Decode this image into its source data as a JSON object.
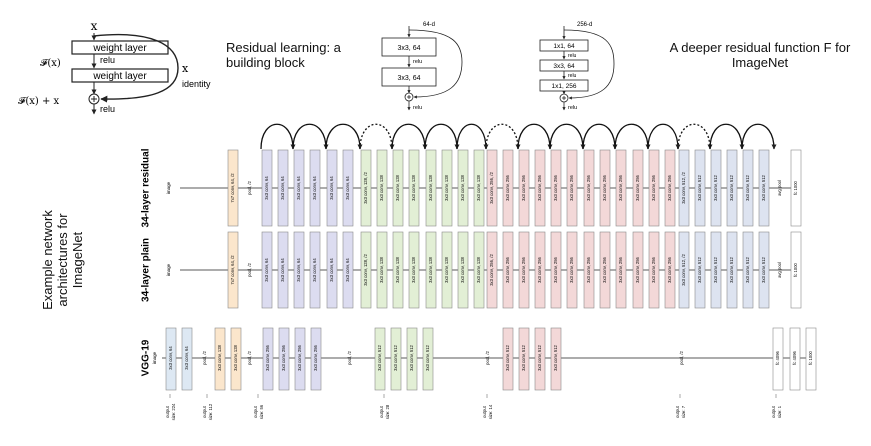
{
  "block_basic": {
    "input": "x",
    "layer1": "weight layer",
    "relu_mid": "relu",
    "layer2": "weight layer",
    "fx": "𝓕(x)",
    "shortcut_x": "x",
    "shortcut": "identity",
    "sum": "𝓕(x) + x",
    "relu_out": "relu"
  },
  "caption_residual": [
    "Residual learning: a",
    "building block"
  ],
  "block_64": {
    "input": "64-d",
    "layer1": "3x3, 64",
    "relu_mid": "relu",
    "layer2": "3x3, 64",
    "relu_out": "relu"
  },
  "block_256": {
    "input": "256-d",
    "layer1": "1x1, 64",
    "relu1": "relu",
    "layer2": "3x3, 64",
    "relu2": "relu",
    "layer3": "1x1, 256",
    "relu_out": "relu"
  },
  "caption_deeper": [
    "A deeper residual function F for",
    "ImageNet"
  ],
  "caption_example": [
    "Example network",
    "architectures for ImageNet"
  ],
  "rows": [
    {
      "label": "34-layer residual",
      "input": "image",
      "layers": [
        {
          "text": "7x7 conv, 64, /2",
          "color": "#fbe6cc"
        },
        {
          "text": "pool, /2",
          "color": "none"
        },
        {
          "text": "3x3 conv, 64",
          "color": "#dcdcf0"
        },
        {
          "text": "3x3 conv, 64",
          "color": "#dcdcf0"
        },
        {
          "text": "3x3 conv, 64",
          "color": "#dcdcf0"
        },
        {
          "text": "3x3 conv, 64",
          "color": "#dcdcf0"
        },
        {
          "text": "3x3 conv, 64",
          "color": "#dcdcf0"
        },
        {
          "text": "3x3 conv, 64",
          "color": "#dcdcf0"
        },
        {
          "text": "3x3 conv, 128, /2",
          "color": "#e2efd5"
        },
        {
          "text": "3x3 conv, 128",
          "color": "#e2efd5"
        },
        {
          "text": "3x3 conv, 128",
          "color": "#e2efd5"
        },
        {
          "text": "3x3 conv, 128",
          "color": "#e2efd5"
        },
        {
          "text": "3x3 conv, 128",
          "color": "#e2efd5"
        },
        {
          "text": "3x3 conv, 128",
          "color": "#e2efd5"
        },
        {
          "text": "3x3 conv, 128",
          "color": "#e2efd5"
        },
        {
          "text": "3x3 conv, 128",
          "color": "#e2efd5"
        },
        {
          "text": "3x3 conv, 256, /2",
          "color": "#f3d8d8"
        },
        {
          "text": "3x3 conv, 256",
          "color": "#f3d8d8"
        },
        {
          "text": "3x3 conv, 256",
          "color": "#f3d8d8"
        },
        {
          "text": "3x3 conv, 256",
          "color": "#f3d8d8"
        },
        {
          "text": "3x3 conv, 256",
          "color": "#f3d8d8"
        },
        {
          "text": "3x3 conv, 256",
          "color": "#f3d8d8"
        },
        {
          "text": "3x3 conv, 256",
          "color": "#f3d8d8"
        },
        {
          "text": "3x3 conv, 256",
          "color": "#f3d8d8"
        },
        {
          "text": "3x3 conv, 256",
          "color": "#f3d8d8"
        },
        {
          "text": "3x3 conv, 256",
          "color": "#f3d8d8"
        },
        {
          "text": "3x3 conv, 256",
          "color": "#f3d8d8"
        },
        {
          "text": "3x3 conv, 256",
          "color": "#f3d8d8"
        },
        {
          "text": "3x3 conv, 512, /2",
          "color": "#dde3f0"
        },
        {
          "text": "3x3 conv, 512",
          "color": "#dde3f0"
        },
        {
          "text": "3x3 conv, 512",
          "color": "#dde3f0"
        },
        {
          "text": "3x3 conv, 512",
          "color": "#dde3f0"
        },
        {
          "text": "3x3 conv, 512",
          "color": "#dde3f0"
        },
        {
          "text": "3x3 conv, 512",
          "color": "#dde3f0"
        },
        {
          "text": "avg pool",
          "color": "none"
        },
        {
          "text": "fc 1000",
          "color": "#ffffff"
        }
      ]
    },
    {
      "label": "34-layer plain",
      "input": "image",
      "layers": [
        {
          "text": "7x7 conv, 64, /2",
          "color": "#fbe6cc"
        },
        {
          "text": "pool, /2",
          "color": "none"
        },
        {
          "text": "3x3 conv, 64",
          "color": "#dcdcf0"
        },
        {
          "text": "3x3 conv, 64",
          "color": "#dcdcf0"
        },
        {
          "text": "3x3 conv, 64",
          "color": "#dcdcf0"
        },
        {
          "text": "3x3 conv, 64",
          "color": "#dcdcf0"
        },
        {
          "text": "3x3 conv, 64",
          "color": "#dcdcf0"
        },
        {
          "text": "3x3 conv, 64",
          "color": "#dcdcf0"
        },
        {
          "text": "3x3 conv, 128, /2",
          "color": "#e2efd5"
        },
        {
          "text": "3x3 conv, 128",
          "color": "#e2efd5"
        },
        {
          "text": "3x3 conv, 128",
          "color": "#e2efd5"
        },
        {
          "text": "3x3 conv, 128",
          "color": "#e2efd5"
        },
        {
          "text": "3x3 conv, 128",
          "color": "#e2efd5"
        },
        {
          "text": "3x3 conv, 128",
          "color": "#e2efd5"
        },
        {
          "text": "3x3 conv, 128",
          "color": "#e2efd5"
        },
        {
          "text": "3x3 conv, 128",
          "color": "#e2efd5"
        },
        {
          "text": "3x3 conv, 256, /2",
          "color": "#f3d8d8"
        },
        {
          "text": "3x3 conv, 256",
          "color": "#f3d8d8"
        },
        {
          "text": "3x3 conv, 256",
          "color": "#f3d8d8"
        },
        {
          "text": "3x3 conv, 256",
          "color": "#f3d8d8"
        },
        {
          "text": "3x3 conv, 256",
          "color": "#f3d8d8"
        },
        {
          "text": "3x3 conv, 256",
          "color": "#f3d8d8"
        },
        {
          "text": "3x3 conv, 256",
          "color": "#f3d8d8"
        },
        {
          "text": "3x3 conv, 256",
          "color": "#f3d8d8"
        },
        {
          "text": "3x3 conv, 256",
          "color": "#f3d8d8"
        },
        {
          "text": "3x3 conv, 256",
          "color": "#f3d8d8"
        },
        {
          "text": "3x3 conv, 256",
          "color": "#f3d8d8"
        },
        {
          "text": "3x3 conv, 256",
          "color": "#f3d8d8"
        },
        {
          "text": "3x3 conv, 512, /2",
          "color": "#dde3f0"
        },
        {
          "text": "3x3 conv, 512",
          "color": "#dde3f0"
        },
        {
          "text": "3x3 conv, 512",
          "color": "#dde3f0"
        },
        {
          "text": "3x3 conv, 512",
          "color": "#dde3f0"
        },
        {
          "text": "3x3 conv, 512",
          "color": "#dde3f0"
        },
        {
          "text": "3x3 conv, 512",
          "color": "#dde3f0"
        },
        {
          "text": "avg pool",
          "color": "none"
        },
        {
          "text": "fc 1000",
          "color": "#ffffff"
        }
      ]
    },
    {
      "label": "VGG-19",
      "input": "image",
      "layers": [
        {
          "text": "3x3 conv, 64",
          "color": "#dde8f3"
        },
        {
          "text": "3x3 conv, 64",
          "color": "#dde8f3"
        },
        {
          "text": "pool, /2",
          "color": "none"
        },
        {
          "text": "3x3 conv, 128",
          "color": "#fbe6cc"
        },
        {
          "text": "3x3 conv, 128",
          "color": "#fbe6cc"
        },
        {
          "text": "pool, /2",
          "color": "none"
        },
        {
          "text": "3x3 conv, 256",
          "color": "#dcdcf0"
        },
        {
          "text": "3x3 conv, 256",
          "color": "#dcdcf0"
        },
        {
          "text": "3x3 conv, 256",
          "color": "#dcdcf0"
        },
        {
          "text": "3x3 conv, 256",
          "color": "#dcdcf0"
        },
        {
          "text": "pool, /2",
          "color": "none"
        },
        {
          "text": "3x3 conv, 512",
          "color": "#e2efd5"
        },
        {
          "text": "3x3 conv, 512",
          "color": "#e2efd5"
        },
        {
          "text": "3x3 conv, 512",
          "color": "#e2efd5"
        },
        {
          "text": "3x3 conv, 512",
          "color": "#e2efd5"
        },
        {
          "text": "pool, /2",
          "color": "none"
        },
        {
          "text": "3x3 conv, 512",
          "color": "#f3d8d8"
        },
        {
          "text": "3x3 conv, 512",
          "color": "#f3d8d8"
        },
        {
          "text": "3x3 conv, 512",
          "color": "#f3d8d8"
        },
        {
          "text": "3x3 conv, 512",
          "color": "#f3d8d8"
        },
        {
          "text": "pool, /2",
          "color": "none"
        },
        {
          "text": "fc 4096",
          "color": "#ffffff"
        },
        {
          "text": "fc 4096",
          "color": "#ffffff"
        },
        {
          "text": "fc 1000",
          "color": "#ffffff"
        }
      ]
    }
  ],
  "output_sizes": [
    {
      "line1": "output",
      "line2": "size: 224"
    },
    {
      "line1": "output",
      "line2": "size: 112"
    },
    {
      "line1": "output",
      "line2": "size: 56"
    },
    {
      "line1": "output",
      "line2": "size: 28"
    },
    {
      "line1": "output",
      "line2": "size: 14"
    },
    {
      "line1": "output",
      "line2": "size: 7"
    },
    {
      "line1": "output",
      "line2": "size: 1"
    }
  ],
  "colors": {
    "stroke": "#222222",
    "box_stroke": "#8a8a8a"
  }
}
